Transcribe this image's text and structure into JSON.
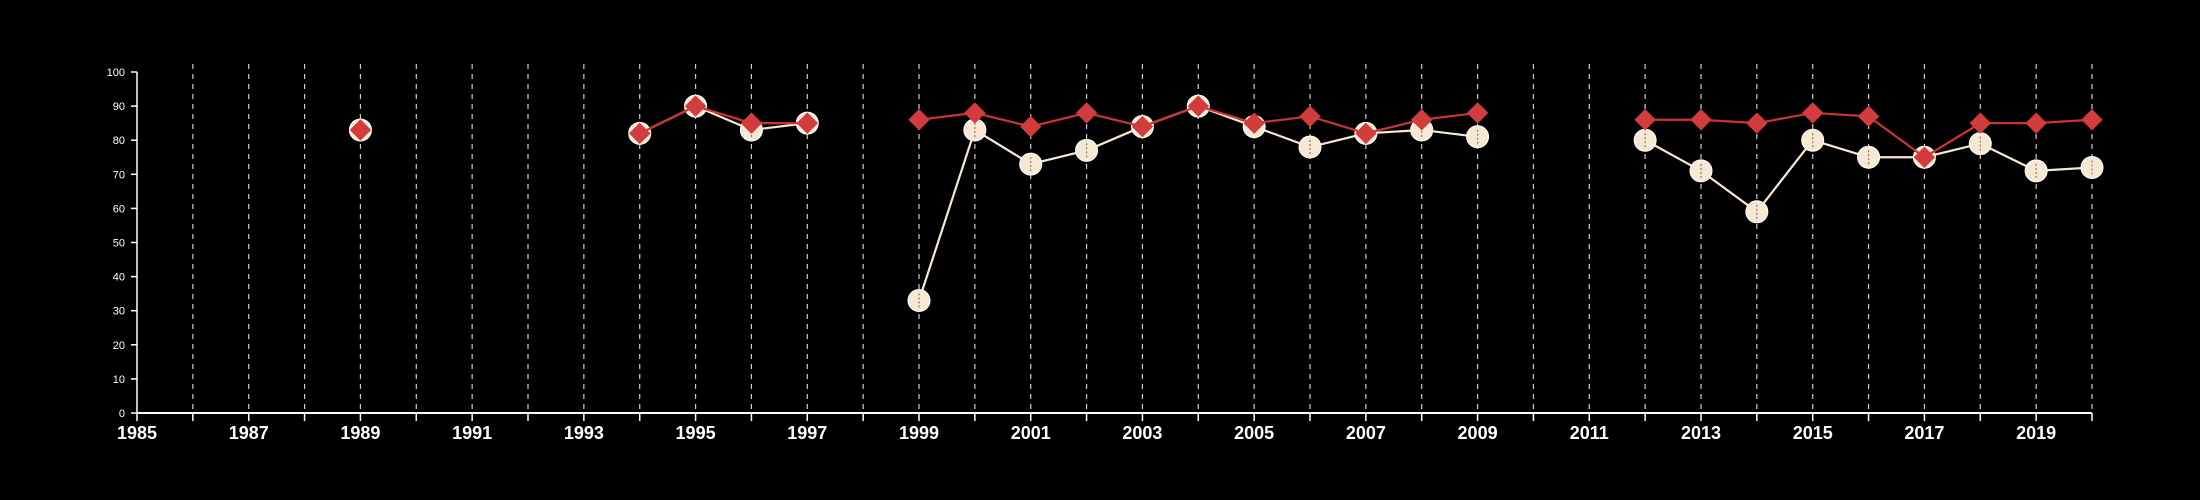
{
  "chart_data": {
    "type": "line",
    "title": "",
    "xlabel": "",
    "ylabel": "",
    "xlim": [
      1985,
      2020
    ],
    "ylim": [
      0,
      100
    ],
    "x_ticks": [
      1985,
      1987,
      1989,
      1991,
      1993,
      1995,
      1997,
      1999,
      2001,
      2003,
      2005,
      2007,
      2009,
      2011,
      2013,
      2015,
      2017,
      2019
    ],
    "y_ticks": [
      0,
      10,
      20,
      30,
      40,
      50,
      60,
      70,
      80,
      90,
      100
    ],
    "grid": "vertical dashed lines at every year",
    "background": "#000000",
    "series": [
      {
        "marker": "circle",
        "color": "#f7e8d3",
        "line_color": "#f7e8d3",
        "points": [
          [
            1989,
            83
          ],
          [
            1994,
            82
          ],
          [
            1995,
            90
          ],
          [
            1996,
            83
          ],
          [
            1997,
            85
          ],
          [
            1999,
            33
          ],
          [
            2000,
            83
          ],
          [
            2001,
            73
          ],
          [
            2002,
            77
          ],
          [
            2003,
            84
          ],
          [
            2004,
            90
          ],
          [
            2005,
            84
          ],
          [
            2006,
            78
          ],
          [
            2007,
            82
          ],
          [
            2008,
            83
          ],
          [
            2009,
            81
          ],
          [
            2012,
            80
          ],
          [
            2013,
            71
          ],
          [
            2014,
            59
          ],
          [
            2015,
            80
          ],
          [
            2016,
            75
          ],
          [
            2017,
            75
          ],
          [
            2018,
            79
          ],
          [
            2019,
            71
          ],
          [
            2020,
            72
          ]
        ]
      },
      {
        "marker": "diamond",
        "color": "#d23c3c",
        "line_color": "#c93434",
        "points": [
          [
            1989,
            83
          ],
          [
            1994,
            82
          ],
          [
            1995,
            90
          ],
          [
            1996,
            85
          ],
          [
            1997,
            85
          ],
          [
            1999,
            86
          ],
          [
            2000,
            88
          ],
          [
            2001,
            84
          ],
          [
            2002,
            88
          ],
          [
            2003,
            84
          ],
          [
            2004,
            90
          ],
          [
            2005,
            85
          ],
          [
            2006,
            87
          ],
          [
            2007,
            82
          ],
          [
            2008,
            86
          ],
          [
            2009,
            88
          ],
          [
            2012,
            86
          ],
          [
            2013,
            86
          ],
          [
            2014,
            85
          ],
          [
            2015,
            88
          ],
          [
            2016,
            87
          ],
          [
            2017,
            75
          ],
          [
            2018,
            85
          ],
          [
            2019,
            85
          ],
          [
            2020,
            86
          ]
        ]
      }
    ]
  }
}
